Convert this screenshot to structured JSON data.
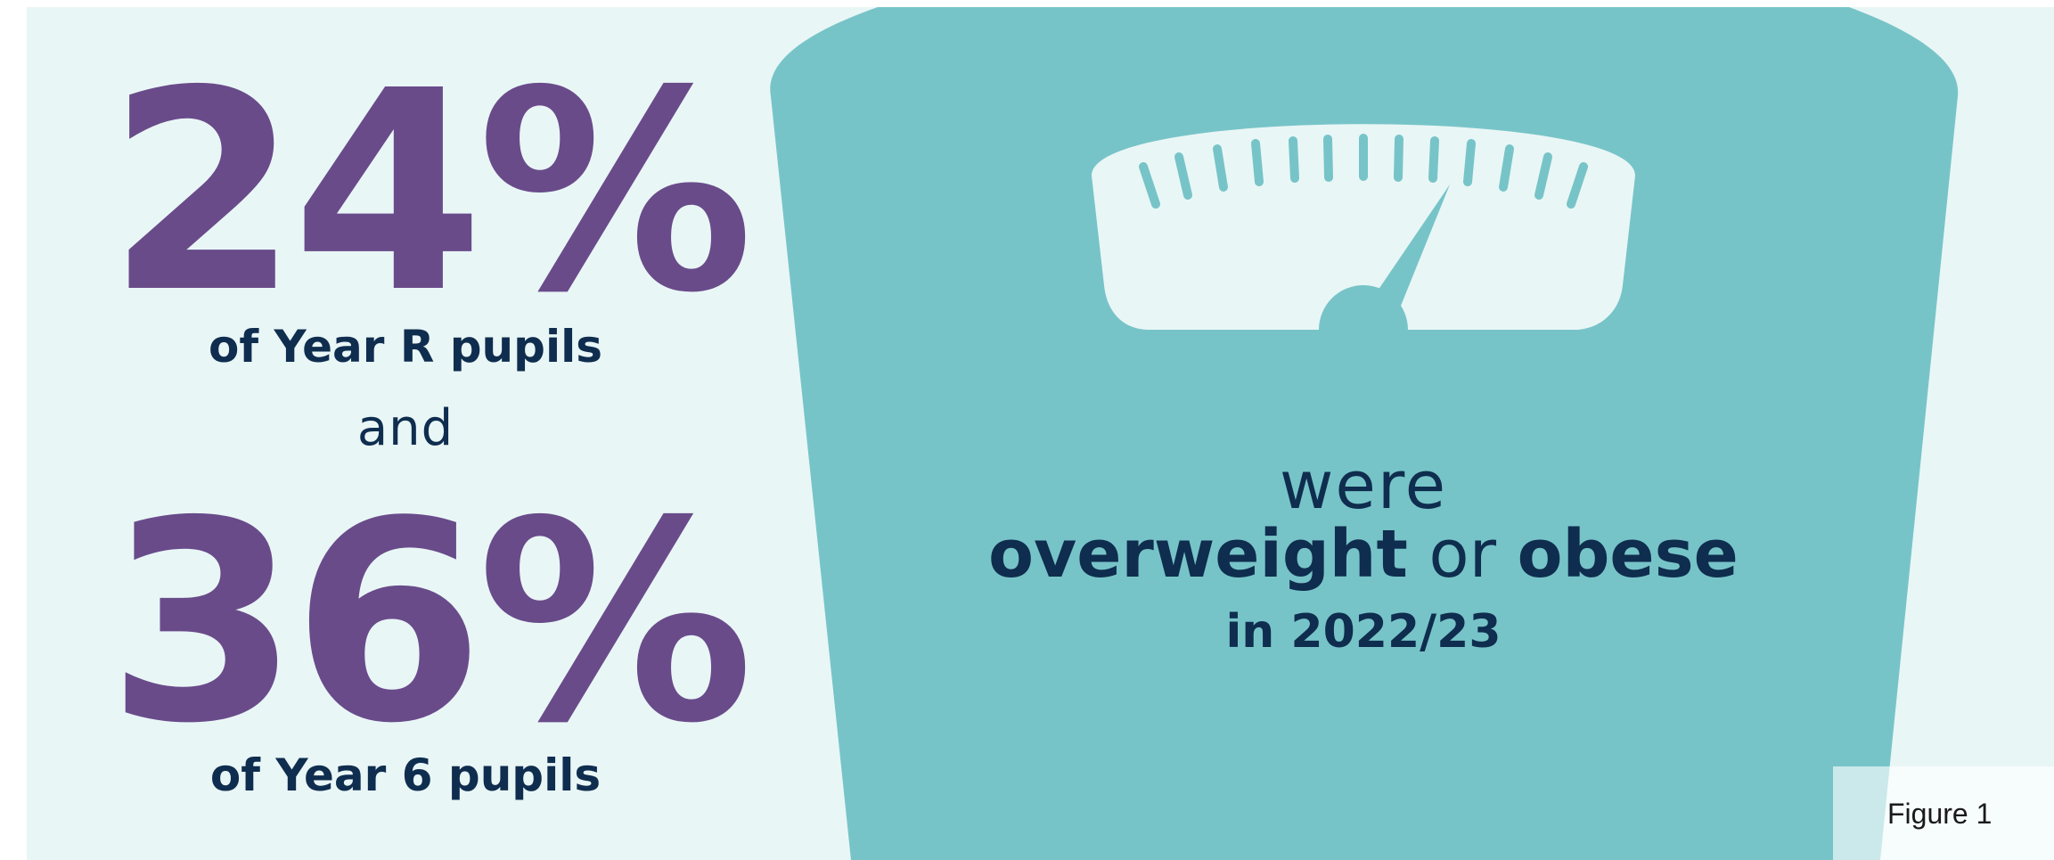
{
  "colors": {
    "background": "#e9f6f6",
    "scale_teal": "#77c4c8",
    "stat_purple": "#694b8a",
    "text_navy": "#0f2d4e"
  },
  "stats": [
    {
      "value": "24%",
      "caption": "of Year R pupils"
    },
    {
      "value": "36%",
      "caption": "of Year 6 pupils"
    }
  ],
  "connector": "and",
  "headline": {
    "were": "were",
    "overweight": "overweight",
    "or": "or",
    "obese": "obese",
    "period": "in 2022/23"
  },
  "figure_label": "Figure 1",
  "icons": {
    "scale": "bathroom-scale-icon",
    "dial": "scale-dial-icon",
    "needle": "dial-needle-icon"
  }
}
